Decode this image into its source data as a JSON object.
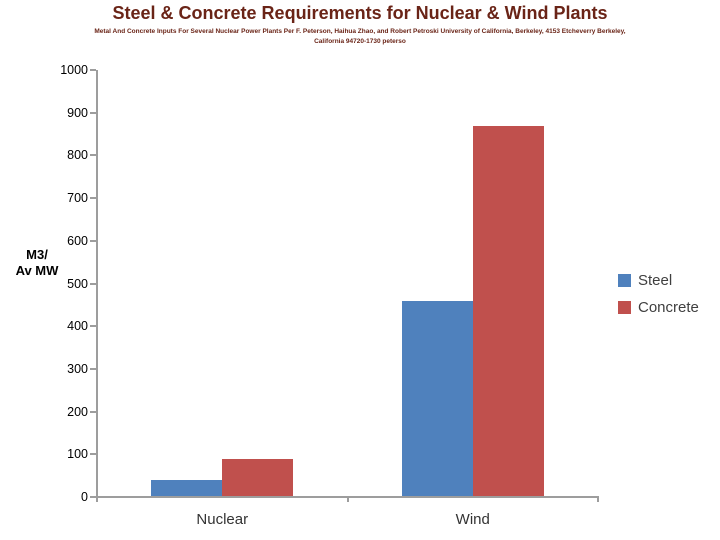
{
  "header": {
    "title": "Steel & Concrete Requirements for Nuclear & Wind Plants",
    "subtitle_line1": "Metal And Concrete Inputs For Several Nuclear Power Plants Per F. Peterson, Haihua Zhao, and Robert Petroski University of California, Berkeley, 4153 Etcheverry Berkeley,",
    "subtitle_line2": "California 94720-1730 peterso"
  },
  "chart_data": {
    "type": "bar",
    "title": "Steel & Concrete Requirements for Nuclear & Wind Plants",
    "categories": [
      "Nuclear",
      "Wind"
    ],
    "series": [
      {
        "name": "Steel",
        "color": "#4f81bd",
        "values": [
          40,
          460
        ]
      },
      {
        "name": "Concrete",
        "color": "#c0504d",
        "values": [
          90,
          870
        ]
      }
    ],
    "xlabel": "",
    "ylabel": "M3/ Av MW",
    "ylabel_lines": [
      "M3/",
      "Av MW"
    ],
    "ylim": [
      0,
      1000
    ],
    "yticks": [
      0,
      100,
      200,
      300,
      400,
      500,
      600,
      700,
      800,
      900,
      1000
    ],
    "grid": "off",
    "legend_position": "right"
  },
  "colors": {
    "title_text": "#6a2417",
    "subtitle_text": "#6a2417",
    "axis_line": "#9d9d9d",
    "tick_label": "#000000",
    "category_label": "#333333",
    "legend_text": "#3f3f3f",
    "background": "#ffffff"
  }
}
